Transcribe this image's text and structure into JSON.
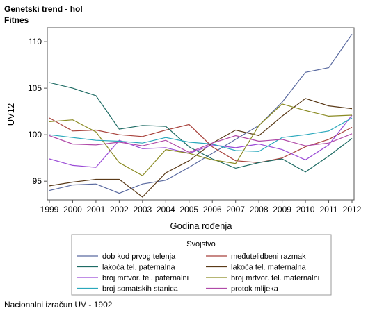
{
  "chart": {
    "title_line1": "Genetski trend - hol",
    "title_line2": "Fitnes",
    "footnote": "Nacionalni izračun UV - 1902"
  },
  "chart_data": {
    "type": "line",
    "title": "Genetski trend - hol",
    "subtitle": "Fitnes",
    "xlabel": "Godina rođenja",
    "ylabel": "UV12",
    "x": [
      1999,
      2000,
      2001,
      2002,
      2003,
      2004,
      2005,
      2006,
      2007,
      2008,
      2009,
      2010,
      2011,
      2012
    ],
    "xlim": [
      1999,
      2012
    ],
    "ylim": [
      93,
      111.5
    ],
    "yticks": [
      95,
      100,
      105,
      110
    ],
    "grid": false,
    "legend_title": "Svojstvo",
    "legend_placement": "bottom",
    "series": [
      {
        "name": "dob kod prvog telenja",
        "color": "#5a6aa0",
        "values": [
          94.0,
          94.6,
          94.7,
          93.7,
          94.7,
          95.1,
          96.5,
          98.0,
          99.5,
          101.0,
          103.5,
          106.7,
          107.2,
          110.8
        ]
      },
      {
        "name": "međutelidbeni razmak",
        "color": "#a8423c",
        "values": [
          101.8,
          100.4,
          100.5,
          100.0,
          99.8,
          100.5,
          101.1,
          98.7,
          97.2,
          97.0,
          97.5,
          98.7,
          99.5,
          100.8
        ]
      },
      {
        "name": "lakoća tel. paternalna",
        "color": "#1e6b64",
        "values": [
          105.6,
          105.0,
          104.2,
          100.6,
          101.0,
          100.9,
          98.7,
          97.4,
          96.4,
          97.0,
          97.4,
          96.0,
          97.7,
          99.6
        ]
      },
      {
        "name": "lakoća tel. maternalna",
        "color": "#5a3a18",
        "values": [
          94.5,
          94.9,
          95.2,
          95.2,
          93.3,
          95.9,
          97.2,
          99.1,
          100.5,
          99.9,
          102.0,
          103.9,
          103.1,
          102.8
        ]
      },
      {
        "name": "broj mrtvor. tel. paternalni",
        "color": "#9a4ad6",
        "values": [
          97.4,
          96.7,
          96.5,
          99.4,
          98.5,
          98.6,
          98.0,
          98.9,
          98.6,
          99.0,
          98.4,
          97.3,
          98.9,
          102.1
        ]
      },
      {
        "name": "broj mrtvor. tel. maternalni",
        "color": "#8a8a22",
        "values": [
          101.4,
          101.6,
          100.3,
          97.0,
          95.6,
          98.4,
          98.0,
          97.3,
          96.9,
          101.0,
          103.3,
          102.6,
          102.0,
          102.1
        ]
      },
      {
        "name": "broj somatskih stanica",
        "color": "#2aa8bc",
        "values": [
          100.0,
          99.7,
          99.4,
          99.3,
          99.1,
          99.7,
          99.2,
          99.0,
          98.3,
          98.2,
          99.7,
          100.0,
          100.4,
          101.8
        ]
      },
      {
        "name": "protok mlijeka",
        "color": "#b04aa8",
        "values": [
          99.9,
          99.0,
          98.9,
          99.2,
          98.8,
          99.4,
          98.1,
          99.1,
          99.9,
          99.3,
          99.5,
          98.8,
          99.1,
          100.1
        ]
      }
    ]
  }
}
